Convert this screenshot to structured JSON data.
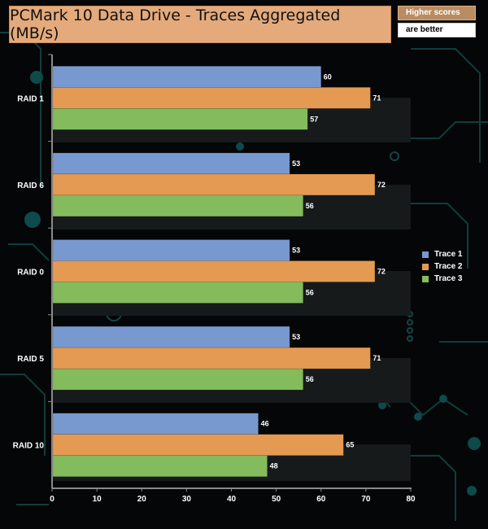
{
  "title": "PCMark 10 Data Drive - Traces Aggregated (MB/s)",
  "note": {
    "line1": "Higher scores",
    "line2": "are better"
  },
  "colors": {
    "trace1": "#7899d0",
    "trace2": "#e49a53",
    "trace3": "#84bb5c",
    "title_bg": "#e4aa7c",
    "background": "#050607",
    "circuit": "#0f3d3d"
  },
  "chart_data": {
    "type": "bar",
    "orientation": "horizontal",
    "title": "PCMark 10 Data Drive - Traces Aggregated (MB/s)",
    "categories": [
      "RAID 1",
      "RAID 6",
      "RAID 0",
      "RAID 5",
      "RAID 10"
    ],
    "series": [
      {
        "name": "Trace 1",
        "values": [
          60,
          53,
          53,
          53,
          46
        ]
      },
      {
        "name": "Trace 2",
        "values": [
          71,
          72,
          72,
          71,
          65
        ]
      },
      {
        "name": "Trace 3",
        "values": [
          57,
          56,
          56,
          56,
          48
        ]
      }
    ],
    "xlim": [
      0,
      80
    ],
    "xticks": [
      "0",
      "10",
      "20",
      "30",
      "40",
      "50",
      "60",
      "70",
      "80"
    ],
    "xlabel": "",
    "ylabel": "",
    "legend_position": "right",
    "data_labels": true
  }
}
